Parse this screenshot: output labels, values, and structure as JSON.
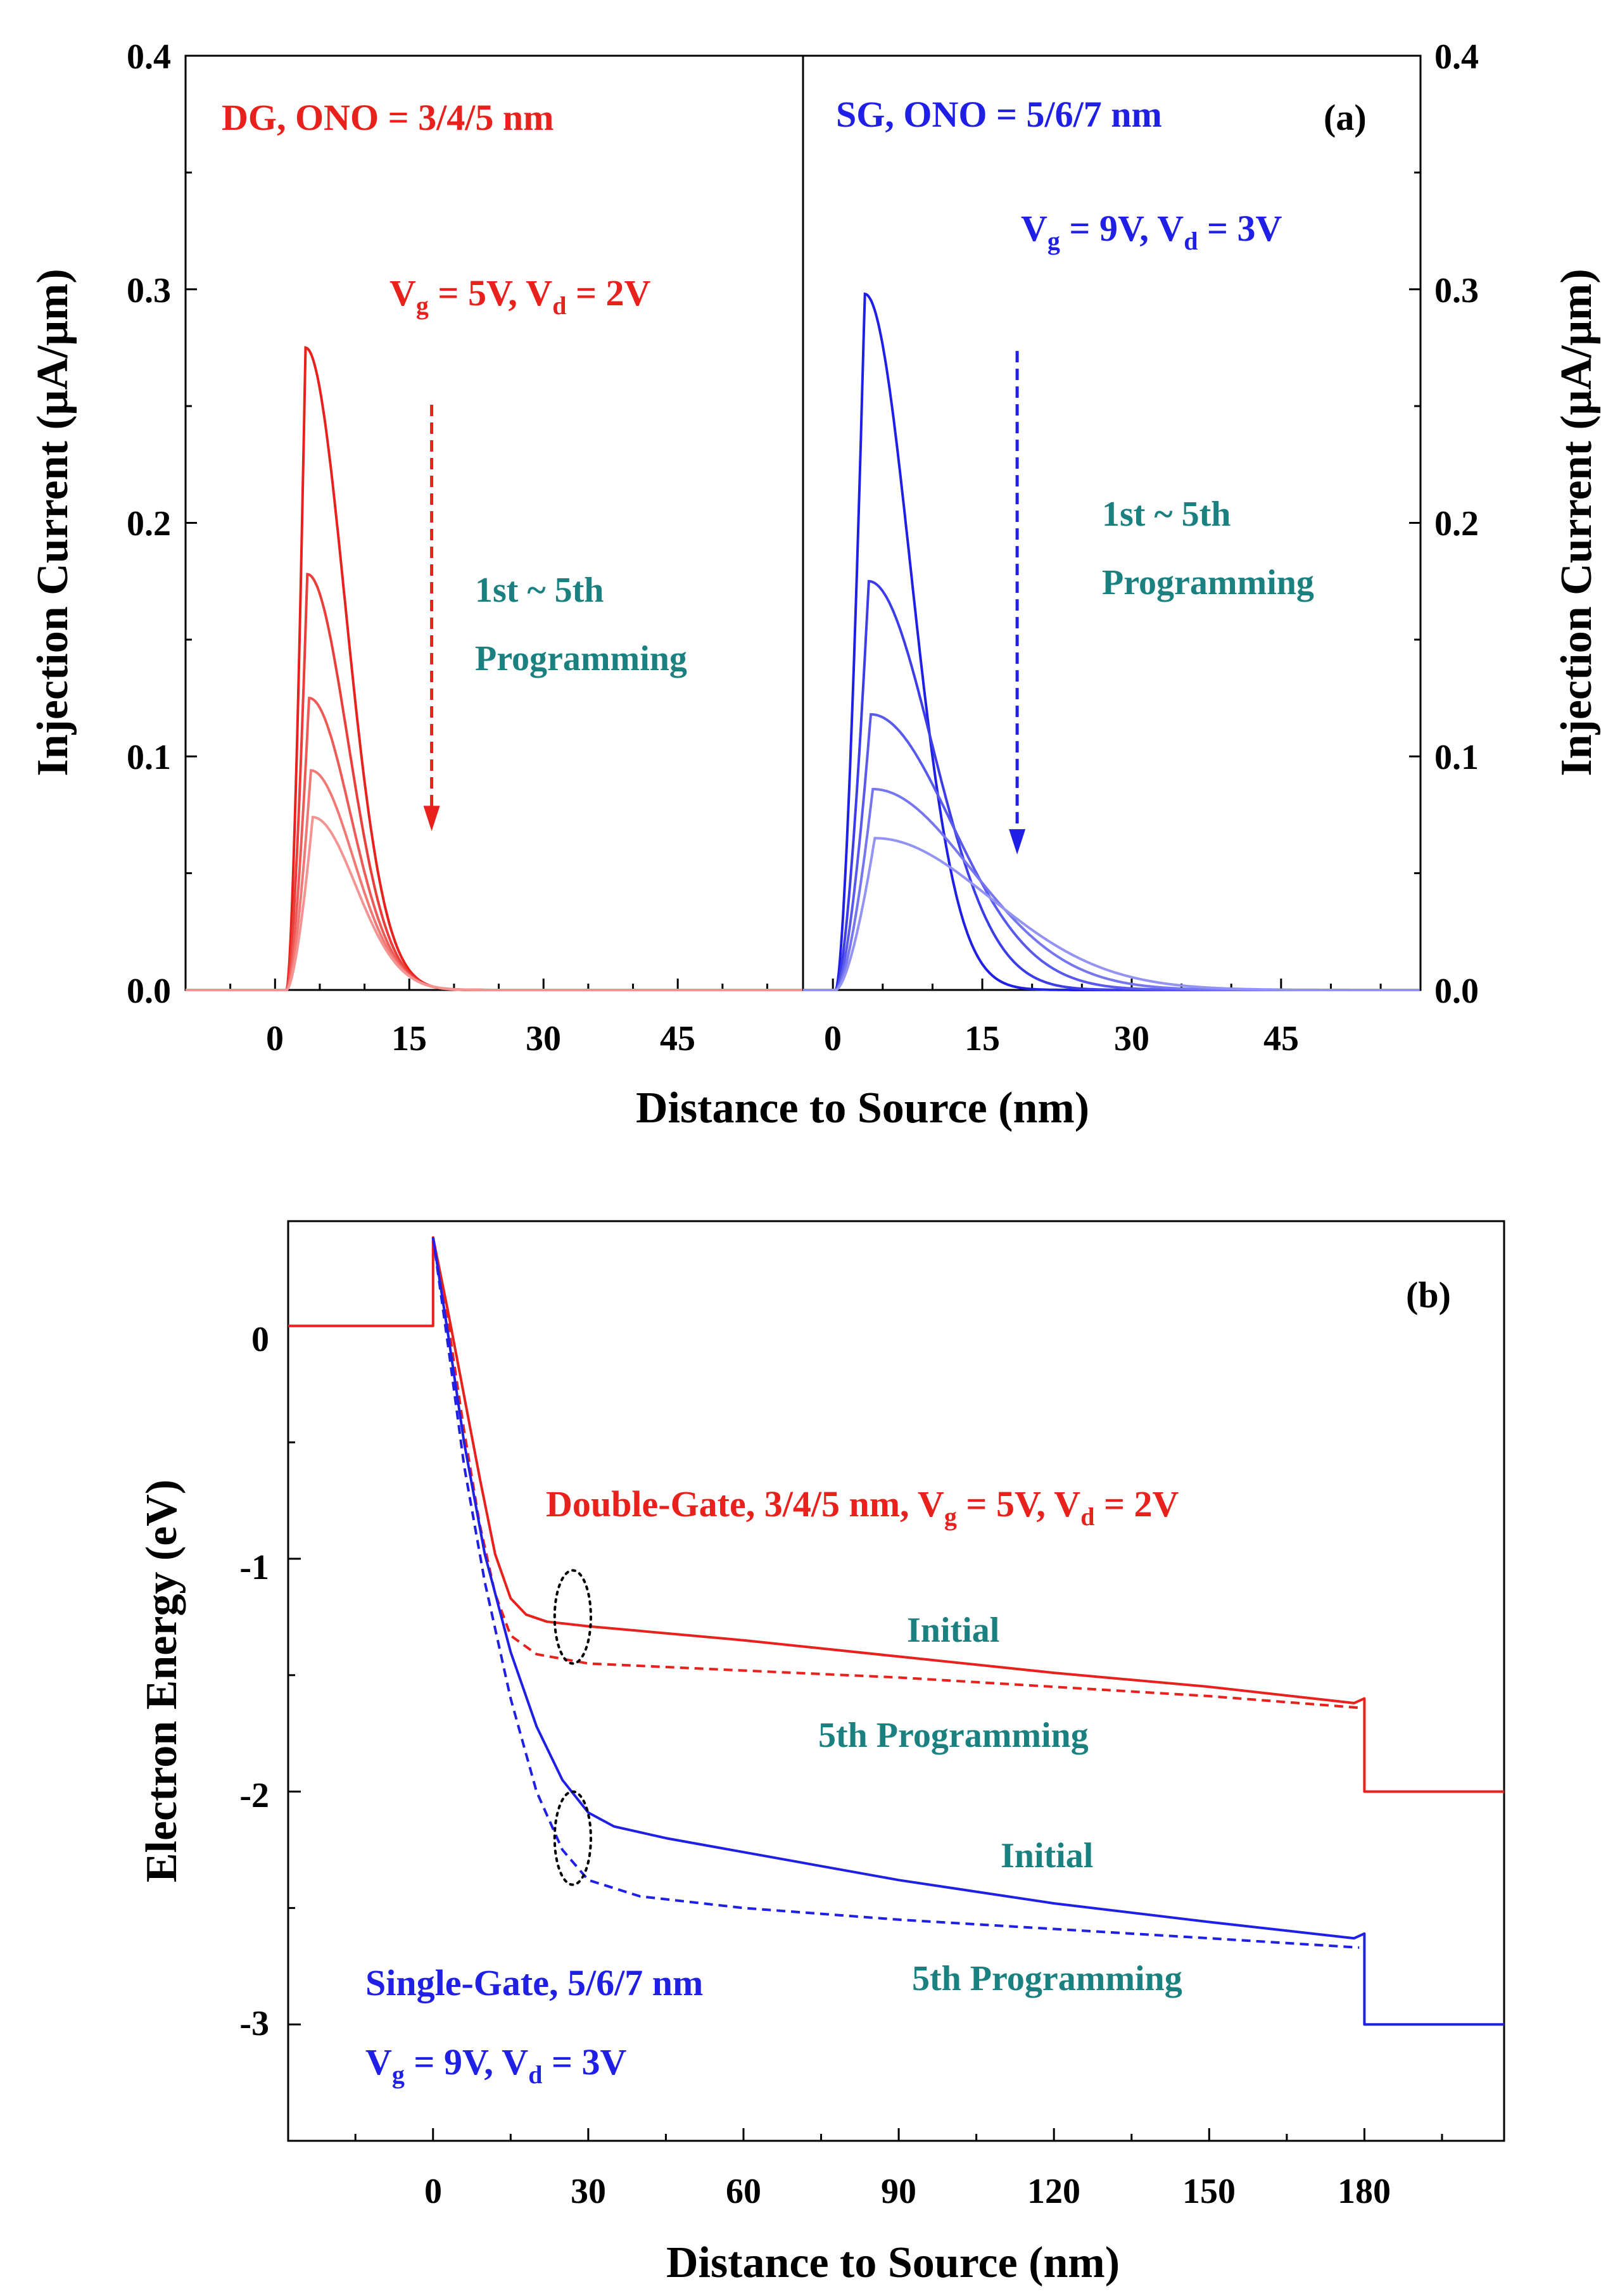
{
  "figure": {
    "colors": {
      "red": "#e8211c",
      "blue": "#1f1fe6",
      "teal": "#1a8080",
      "black": "#000000"
    }
  },
  "chart_data": [
    {
      "panel": "a",
      "type": "line",
      "label": "(a)",
      "xlabel": "Distance to Source (nm)",
      "ylabel": "Injection Current (μA/μm)",
      "ylim": [
        0,
        0.4
      ],
      "yticks": [
        "0.0",
        "0.1",
        "0.2",
        "0.3",
        "0.4"
      ],
      "subplots": [
        {
          "name": "DG",
          "xlim": [
            -10,
            59
          ],
          "xticks": [
            "0",
            "15",
            "30",
            "45"
          ],
          "title": "DG, ONO = 3/4/5 nm",
          "condition": {
            "p1": "V",
            "s1": "g",
            "p2": " = 5V, V",
            "s2": "d",
            "p3": " = 2V"
          },
          "note_line1": "1st ~ 5th",
          "note_line2": "Programming",
          "arrow": {
            "x": 17.5,
            "y_from": 0.275,
            "y_to": 0.068
          },
          "series": [
            {
              "name": "1st",
              "peak": 0.275,
              "onset": 1.3,
              "x_peak": 3.4,
              "decay": 4.4
            },
            {
              "name": "2nd",
              "peak": 0.178,
              "onset": 1.3,
              "x_peak": 3.6,
              "decay": 4.5
            },
            {
              "name": "3rd",
              "peak": 0.125,
              "onset": 1.3,
              "x_peak": 3.8,
              "decay": 4.6
            },
            {
              "name": "4th",
              "peak": 0.094,
              "onset": 1.3,
              "x_peak": 4.0,
              "decay": 4.7
            },
            {
              "name": "5th",
              "peak": 0.074,
              "onset": 1.3,
              "x_peak": 4.2,
              "decay": 4.8
            }
          ]
        },
        {
          "name": "SG",
          "xlim": [
            -3,
            59
          ],
          "xticks": [
            "0",
            "15",
            "30",
            "45"
          ],
          "title": "SG, ONO = 5/6/7 nm",
          "condition": {
            "p1": "V",
            "s1": "g",
            "p2": " = 9V, V",
            "s2": "d",
            "p3": " = 3V"
          },
          "note_line1": "1st ~ 5th",
          "note_line2": "Programming",
          "arrow": {
            "x": 18.5,
            "y_from": 0.298,
            "y_to": 0.058
          },
          "series": [
            {
              "name": "1st",
              "peak": 0.298,
              "onset": 0.3,
              "x_peak": 3.2,
              "decay": 4.6
            },
            {
              "name": "2nd",
              "peak": 0.175,
              "onset": 0.3,
              "x_peak": 3.6,
              "decay": 6.3
            },
            {
              "name": "3rd",
              "peak": 0.118,
              "onset": 0.3,
              "x_peak": 3.8,
              "decay": 8.1
            },
            {
              "name": "4th",
              "peak": 0.086,
              "onset": 0.3,
              "x_peak": 4.0,
              "decay": 9.8
            },
            {
              "name": "5th",
              "peak": 0.065,
              "onset": 0.3,
              "x_peak": 4.2,
              "decay": 11.6
            }
          ]
        }
      ]
    },
    {
      "panel": "b",
      "type": "line",
      "label": "(b)",
      "xlabel": "Distance to Source (nm)",
      "ylabel": "Electron Energy (eV)",
      "xlim": [
        -28,
        207
      ],
      "ylim": [
        -3.5,
        0.45
      ],
      "xticks": [
        "0",
        "30",
        "60",
        "90",
        "120",
        "150",
        "180"
      ],
      "yticks": [
        "0",
        "-1",
        "-2",
        "-3"
      ],
      "dg_label": {
        "p1": "Double-Gate, 3/4/5 nm, V",
        "s1": "g",
        "p2": " = 5V, V",
        "s2": "d",
        "p3": " = 2V"
      },
      "sg_label_line1": "Single-Gate, 5/6/7 nm",
      "sg_label_line2": {
        "p1": "V",
        "s1": "g",
        "p2": " = 9V, V",
        "s2": "d",
        "p3": " = 3V"
      },
      "annotations": {
        "dg_initial": "Initial",
        "dg_5th": "5th Programming",
        "sg_initial": "Initial",
        "sg_5th": "5th Programming"
      },
      "series": [
        {
          "name": "Double-Gate Initial",
          "style": "solid",
          "color": "red",
          "points": [
            [
              -28,
              0
            ],
            [
              0,
              0
            ],
            [
              0,
              0.38
            ],
            [
              3,
              0.05
            ],
            [
              6,
              -0.3
            ],
            [
              9,
              -0.65
            ],
            [
              12,
              -0.98
            ],
            [
              15,
              -1.17
            ],
            [
              18,
              -1.24
            ],
            [
              22,
              -1.27
            ],
            [
              30,
              -1.29
            ],
            [
              60,
              -1.35
            ],
            [
              90,
              -1.42
            ],
            [
              120,
              -1.49
            ],
            [
              150,
              -1.55
            ],
            [
              178,
              -1.62
            ],
            [
              180,
              -1.6
            ],
            [
              180,
              -2.0
            ],
            [
              207,
              -2.0
            ]
          ]
        },
        {
          "name": "Double-Gate 5th Programming",
          "style": "dashed",
          "color": "red",
          "points": [
            [
              0,
              0.38
            ],
            [
              3,
              0.0
            ],
            [
              6,
              -0.45
            ],
            [
              9,
              -0.85
            ],
            [
              12,
              -1.15
            ],
            [
              15,
              -1.33
            ],
            [
              20,
              -1.41
            ],
            [
              30,
              -1.45
            ],
            [
              60,
              -1.48
            ],
            [
              90,
              -1.51
            ],
            [
              120,
              -1.55
            ],
            [
              150,
              -1.59
            ],
            [
              179,
              -1.64
            ]
          ]
        },
        {
          "name": "Single-Gate Initial",
          "style": "solid",
          "color": "blue",
          "points": [
            [
              0,
              0.38
            ],
            [
              3,
              -0.05
            ],
            [
              6,
              -0.5
            ],
            [
              10,
              -0.98
            ],
            [
              15,
              -1.4
            ],
            [
              20,
              -1.72
            ],
            [
              25,
              -1.95
            ],
            [
              30,
              -2.09
            ],
            [
              35,
              -2.15
            ],
            [
              45,
              -2.2
            ],
            [
              60,
              -2.26
            ],
            [
              90,
              -2.38
            ],
            [
              120,
              -2.48
            ],
            [
              150,
              -2.56
            ],
            [
              178,
              -2.63
            ],
            [
              180,
              -2.61
            ],
            [
              180,
              -3.0
            ],
            [
              207,
              -3.0
            ]
          ]
        },
        {
          "name": "Single-Gate 5th Programming",
          "style": "dashed",
          "color": "blue",
          "points": [
            [
              0,
              0.38
            ],
            [
              3,
              -0.1
            ],
            [
              6,
              -0.6
            ],
            [
              10,
              -1.1
            ],
            [
              15,
              -1.6
            ],
            [
              20,
              -2.0
            ],
            [
              25,
              -2.25
            ],
            [
              30,
              -2.38
            ],
            [
              40,
              -2.45
            ],
            [
              60,
              -2.5
            ],
            [
              90,
              -2.55
            ],
            [
              120,
              -2.59
            ],
            [
              150,
              -2.63
            ],
            [
              179,
              -2.67
            ]
          ]
        }
      ],
      "ellipses": [
        {
          "x": 27,
          "y": -1.25,
          "rx": 3.5,
          "ry": 0.2
        },
        {
          "x": 27,
          "y": -2.2,
          "rx": 3.5,
          "ry": 0.2
        }
      ]
    }
  ]
}
